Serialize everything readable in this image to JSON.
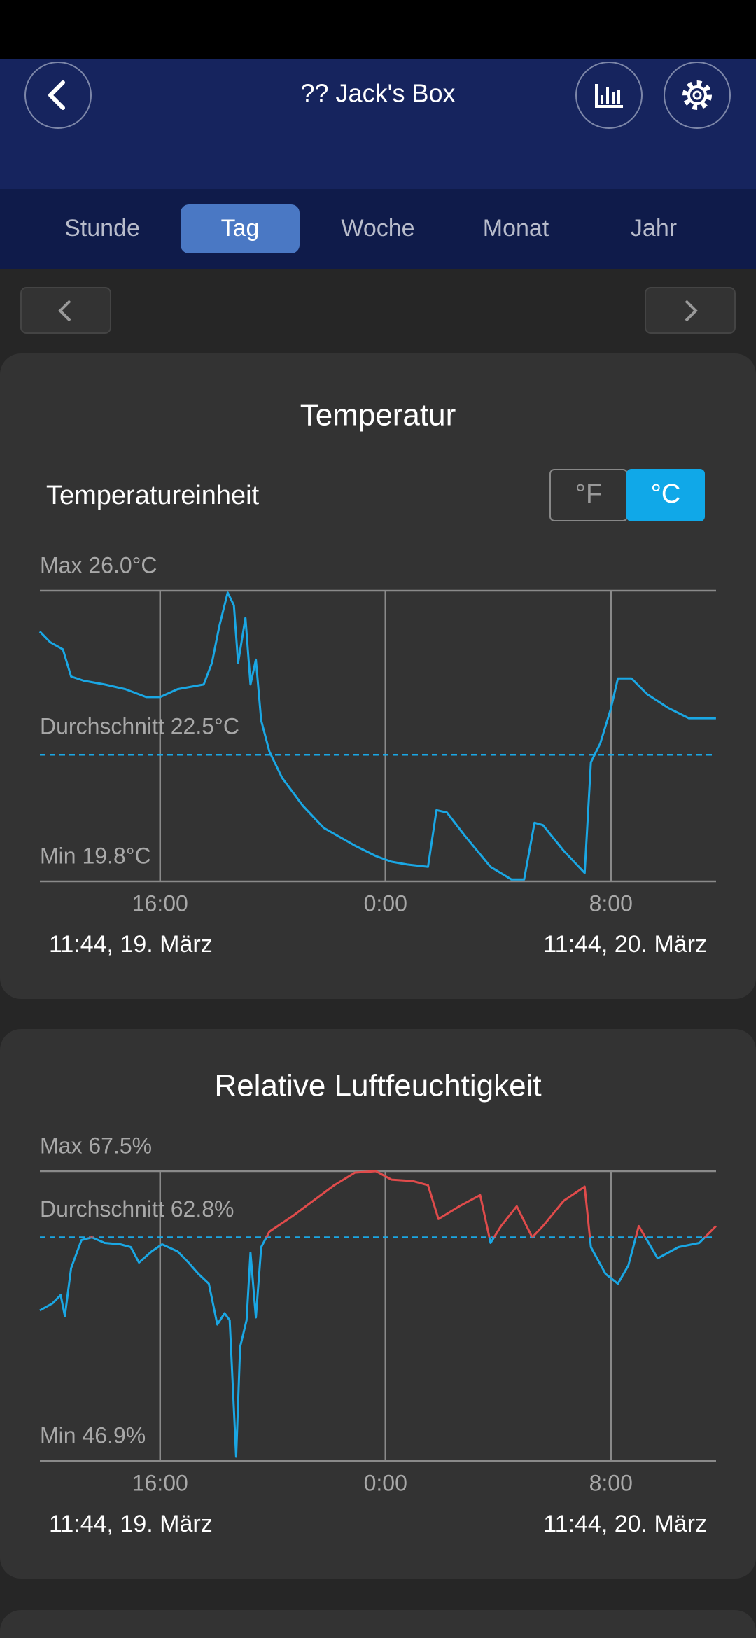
{
  "header": {
    "title": "?? Jack's Box"
  },
  "tabs": {
    "items": [
      "Stunde",
      "Tag",
      "Woche",
      "Monat",
      "Jahr"
    ],
    "selected": 1
  },
  "unit_toggle": {
    "label": "Temperatureinheit",
    "options": [
      "°F",
      "°C"
    ],
    "selected": 1
  },
  "chart_data": [
    {
      "type": "line",
      "title": "Temperatur",
      "color": "#1aa7e4",
      "grid": true,
      "x": [
        11.73,
        12.1,
        12.55,
        12.84,
        13.29,
        14.03,
        14.77,
        15.51,
        16.0,
        16.62,
        17.55,
        17.84,
        18.1,
        18.4,
        18.62,
        18.77,
        19.03,
        19.21,
        19.4,
        19.59,
        19.88,
        20.33,
        21.07,
        21.81,
        22.92,
        23.66,
        24.21,
        24.77,
        25.51,
        25.81,
        26.18,
        26.81,
        27.73,
        28.47,
        28.92,
        29.29,
        29.59,
        30.33,
        31.07,
        31.29,
        31.62,
        31.99,
        32.25,
        32.73,
        33.29,
        34.03,
        34.77,
        35.73
      ],
      "values": [
        25.13,
        24.9,
        24.75,
        24.17,
        24.08,
        24.0,
        23.9,
        23.73,
        23.73,
        23.9,
        24.0,
        24.46,
        25.24,
        25.96,
        25.69,
        24.46,
        25.42,
        24.0,
        24.53,
        23.23,
        22.57,
        22.01,
        21.41,
        20.94,
        20.56,
        20.34,
        20.22,
        20.16,
        20.11,
        21.32,
        21.27,
        20.78,
        20.11,
        19.84,
        19.84,
        21.05,
        21.0,
        20.45,
        19.98,
        22.34,
        22.74,
        23.46,
        24.13,
        24.13,
        23.79,
        23.5,
        23.28,
        23.28
      ],
      "xlim": [
        11.733,
        35.733
      ],
      "xticks": [
        {
          "value": 16,
          "label": "16:00"
        },
        {
          "value": 24,
          "label": "0:00"
        },
        {
          "value": 32,
          "label": "8:00"
        }
      ],
      "ylim": [
        19.8,
        26.0
      ],
      "yticks": [
        {
          "value": 26.0,
          "label": "Max 26.0°C"
        },
        {
          "value": 19.8,
          "label": "Min 19.8°C"
        }
      ],
      "average": {
        "value": 22.5,
        "label": "Durchschnitt 22.5°C"
      },
      "start_label": "11:44,  19. März",
      "end_label": "11:44,  20. März"
    },
    {
      "type": "line",
      "title": "Relative Luftfeuchtigkeit",
      "color": "#1aa7e4",
      "above_average_color": "#e04b4b",
      "grid": true,
      "x": [
        11.73,
        12.18,
        12.47,
        12.62,
        12.84,
        13.21,
        13.58,
        14.03,
        14.59,
        14.96,
        15.25,
        15.7,
        16.07,
        16.62,
        17.01,
        17.36,
        17.73,
        18.03,
        18.29,
        18.47,
        18.7,
        18.84,
        19.07,
        19.21,
        19.4,
        19.59,
        19.88,
        20.7,
        21.44,
        22.18,
        22.92,
        23.66,
        24.21,
        24.96,
        25.51,
        25.88,
        26.62,
        27.36,
        27.73,
        28.1,
        28.66,
        29.21,
        29.59,
        30.33,
        31.07,
        31.29,
        31.81,
        32.25,
        32.62,
        32.99,
        33.66,
        34.4,
        35.14,
        35.73
      ],
      "values": [
        57.6,
        58.1,
        58.7,
        57.2,
        60.6,
        62.6,
        62.8,
        62.4,
        62.3,
        62.1,
        61.0,
        61.8,
        62.3,
        61.8,
        61.0,
        60.2,
        59.5,
        56.6,
        57.4,
        56.9,
        47.2,
        55.0,
        56.9,
        61.7,
        57.1,
        62.1,
        63.2,
        64.3,
        65.4,
        66.5,
        67.4,
        67.5,
        66.9,
        66.8,
        66.5,
        64.1,
        65.0,
        65.8,
        62.4,
        63.6,
        65.0,
        62.8,
        63.6,
        65.4,
        66.4,
        62.1,
        60.2,
        59.5,
        60.8,
        63.6,
        61.3,
        62.1,
        62.4,
        63.6
      ],
      "xlim": [
        11.733,
        35.733
      ],
      "xticks": [
        {
          "value": 16,
          "label": "16:00"
        },
        {
          "value": 24,
          "label": "0:00"
        },
        {
          "value": 32,
          "label": "8:00"
        }
      ],
      "ylim": [
        46.9,
        67.5
      ],
      "yticks": [
        {
          "value": 67.5,
          "label": "Max 67.5%"
        },
        {
          "value": 46.9,
          "label": "Min 46.9%"
        }
      ],
      "average": {
        "value": 62.8,
        "label": "Durchschnitt 62.8%"
      },
      "start_label": "11:44,  19. März",
      "end_label": "11:44,  20. März"
    }
  ]
}
